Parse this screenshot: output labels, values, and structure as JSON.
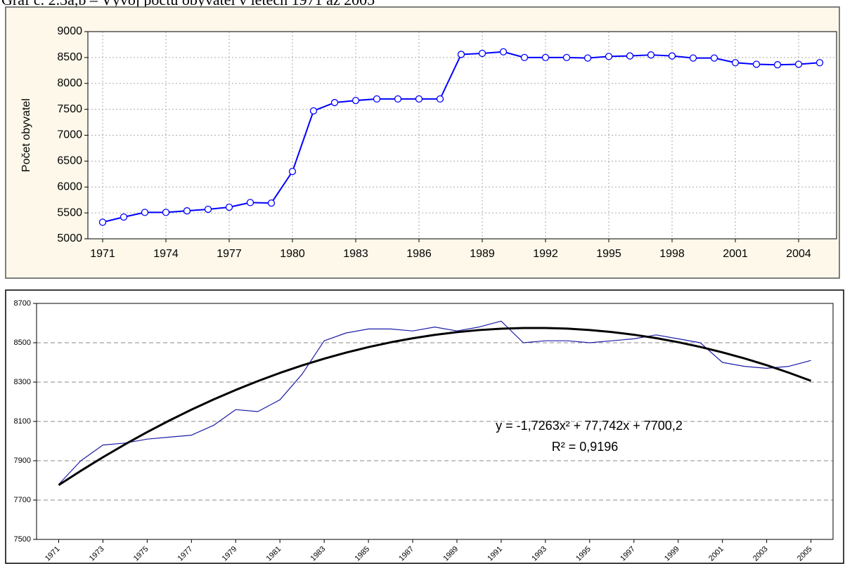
{
  "page_title": "Graf č. 2.3a,b – Vývoj počtu obyvatel v letech 1971 až 2005",
  "chart_data": [
    {
      "type": "line",
      "ylabel": "Počet obyvatel",
      "x": [
        1971,
        1972,
        1973,
        1974,
        1975,
        1976,
        1977,
        1978,
        1979,
        1980,
        1981,
        1982,
        1983,
        1984,
        1985,
        1986,
        1987,
        1988,
        1989,
        1990,
        1991,
        1992,
        1993,
        1994,
        1995,
        1996,
        1997,
        1998,
        1999,
        2000,
        2001,
        2002,
        2003,
        2004,
        2005
      ],
      "series": [
        {
          "color": "#0000ff",
          "markers": true,
          "values": [
            5320,
            5420,
            5510,
            5510,
            5540,
            5570,
            5610,
            5700,
            5690,
            6300,
            7470,
            7630,
            7670,
            7700,
            7700,
            7700,
            7700,
            8560,
            8580,
            8610,
            8500,
            8500,
            8500,
            8490,
            8520,
            8530,
            8550,
            8530,
            8490,
            8490,
            8400,
            8370,
            8360,
            8370,
            8400
          ]
        }
      ],
      "xlim": [
        1970.3,
        2005.8
      ],
      "xticks": [
        1971,
        1974,
        1977,
        1980,
        1983,
        1986,
        1989,
        1992,
        1995,
        1998,
        2001,
        2004
      ],
      "ylim": [
        5000,
        9000
      ],
      "yticks": [
        5000,
        5500,
        6000,
        6500,
        7000,
        7500,
        8000,
        8500,
        9000
      ],
      "grid": true,
      "xgrid": true
    },
    {
      "type": "line",
      "x": [
        1971,
        1972,
        1973,
        1974,
        1975,
        1976,
        1977,
        1978,
        1979,
        1980,
        1981,
        1982,
        1983,
        1984,
        1985,
        1986,
        1987,
        1988,
        1989,
        1990,
        1991,
        1992,
        1993,
        1994,
        1995,
        1996,
        1997,
        1998,
        1999,
        2000,
        2001,
        2002,
        2003,
        2004,
        2005
      ],
      "series": [
        {
          "color": "#1c1ca8",
          "markers": false,
          "values": [
            7780,
            7900,
            7980,
            7990,
            8010,
            8020,
            8030,
            8080,
            8160,
            8150,
            8210,
            8340,
            8510,
            8550,
            8570,
            8570,
            8560,
            8580,
            8560,
            8580,
            8610,
            8500,
            8510,
            8510,
            8500,
            8510,
            8520,
            8540,
            8520,
            8500,
            8400,
            8380,
            8370,
            8380,
            8410
          ]
        },
        {
          "color": "#000000",
          "markers": false,
          "trend": true,
          "values": [
            7776.2,
            7848.8,
            7917.9,
            7983.5,
            8045.8,
            8104.5,
            8159.8,
            8211.7,
            8260.0,
            8305.0,
            8346.5,
            8384.5,
            8419.1,
            8450.2,
            8477.9,
            8502.1,
            8522.9,
            8540.2,
            8554.1,
            8564.5,
            8571.5,
            8575.0,
            8575.1,
            8571.7,
            8564.8,
            8554.5,
            8540.8,
            8523.6,
            8502.9,
            8478.8,
            8451.2,
            8420.2,
            8385.8,
            8347.8,
            8306.5
          ]
        }
      ],
      "annotations": [
        "y = -1,7263x² + 77,742x + 7700,2",
        "R² = 0,9196"
      ],
      "xlim": [
        1970,
        2006
      ],
      "xticks": [
        1971,
        1973,
        1975,
        1977,
        1979,
        1981,
        1983,
        1985,
        1987,
        1989,
        1991,
        1993,
        1995,
        1997,
        1999,
        2001,
        2003,
        2005
      ],
      "ylim": [
        7500,
        8700
      ],
      "yticks": [
        7500,
        7700,
        7900,
        8100,
        8300,
        8500,
        8700
      ],
      "grid": true,
      "xgrid": false
    }
  ]
}
